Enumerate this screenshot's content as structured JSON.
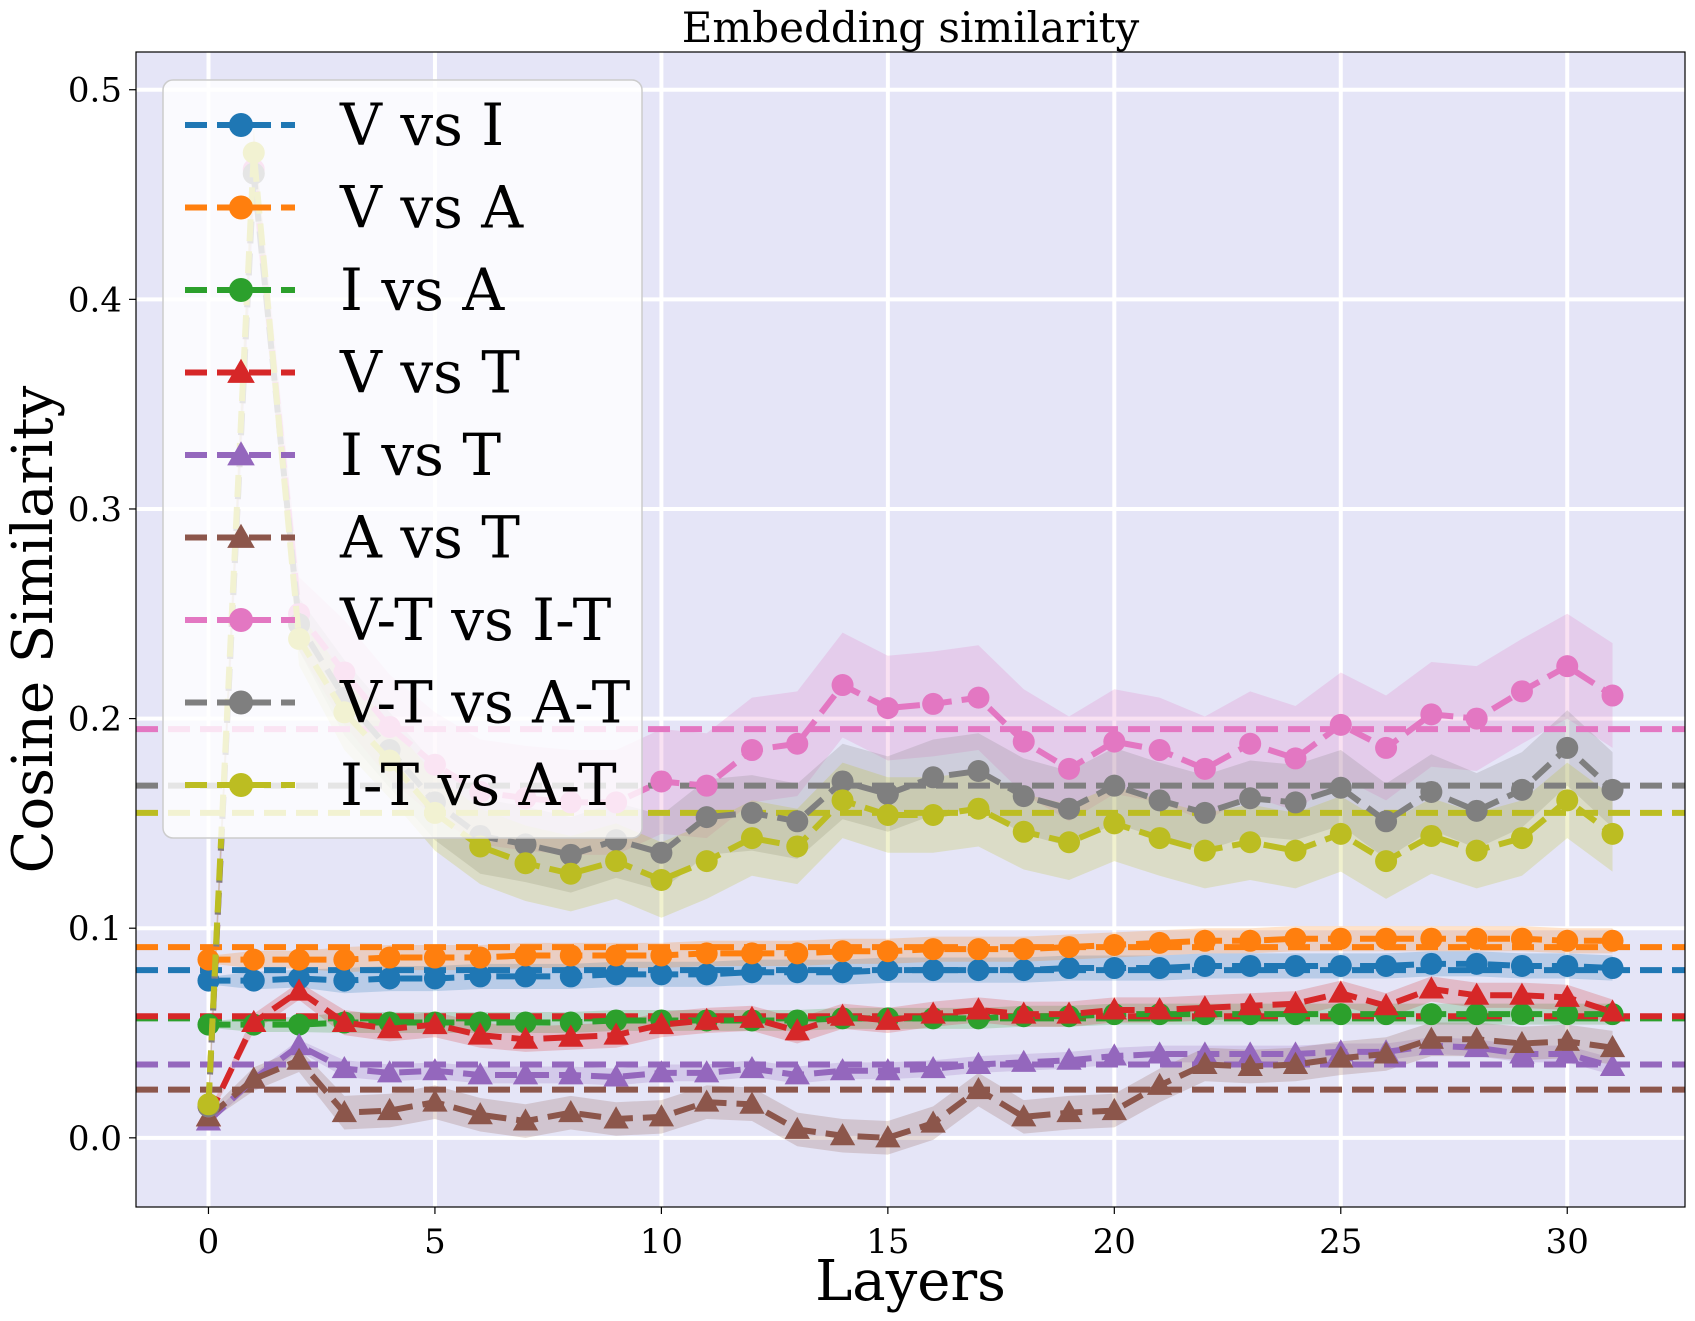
{
  "chart_data": {
    "type": "line",
    "title": "Embedding similarity",
    "xlabel": "Layers",
    "ylabel": "Cosine Similarity",
    "xlim": [
      -1.6,
      32.6
    ],
    "ylim": [
      -0.033,
      0.518
    ],
    "xticks": [
      0,
      5,
      10,
      15,
      20,
      25,
      30
    ],
    "yticks": [
      0.0,
      0.1,
      0.2,
      0.3,
      0.4,
      0.5
    ],
    "xtick_labels": [
      "0",
      "5",
      "10",
      "15",
      "20",
      "25",
      "30"
    ],
    "ytick_labels": [
      "0.0",
      "0.1",
      "0.2",
      "0.3",
      "0.4",
      "0.5"
    ],
    "grid": true,
    "legend_position": "top-left",
    "background_color": "#e5e5f7",
    "x": [
      0,
      1,
      2,
      3,
      4,
      5,
      6,
      7,
      8,
      9,
      10,
      11,
      12,
      13,
      14,
      15,
      16,
      17,
      18,
      19,
      20,
      21,
      22,
      23,
      24,
      25,
      26,
      27,
      28,
      29,
      30,
      31
    ],
    "series": [
      {
        "name": "V vs I",
        "color": "#1f77b4",
        "marker": "circle",
        "mean_line": 0.08,
        "band": 0.006,
        "values": [
          0.075,
          0.075,
          0.076,
          0.075,
          0.076,
          0.076,
          0.077,
          0.077,
          0.077,
          0.078,
          0.078,
          0.078,
          0.079,
          0.079,
          0.079,
          0.08,
          0.08,
          0.08,
          0.08,
          0.081,
          0.081,
          0.081,
          0.082,
          0.082,
          0.082,
          0.082,
          0.082,
          0.083,
          0.083,
          0.082,
          0.082,
          0.081
        ]
      },
      {
        "name": "V vs A",
        "color": "#ff7f0e",
        "marker": "circle",
        "mean_line": 0.091,
        "band": 0.006,
        "values": [
          0.085,
          0.085,
          0.085,
          0.085,
          0.086,
          0.086,
          0.086,
          0.087,
          0.087,
          0.087,
          0.087,
          0.088,
          0.088,
          0.088,
          0.089,
          0.089,
          0.09,
          0.09,
          0.09,
          0.091,
          0.092,
          0.093,
          0.094,
          0.094,
          0.095,
          0.095,
          0.095,
          0.095,
          0.095,
          0.095,
          0.094,
          0.094
        ]
      },
      {
        "name": "I vs A",
        "color": "#2ca02c",
        "marker": "circle",
        "mean_line": 0.057,
        "band": 0.005,
        "values": [
          0.054,
          0.054,
          0.054,
          0.055,
          0.055,
          0.055,
          0.055,
          0.055,
          0.055,
          0.056,
          0.056,
          0.056,
          0.056,
          0.056,
          0.057,
          0.057,
          0.057,
          0.057,
          0.058,
          0.058,
          0.059,
          0.059,
          0.059,
          0.059,
          0.059,
          0.059,
          0.059,
          0.059,
          0.059,
          0.059,
          0.059,
          0.059
        ]
      },
      {
        "name": "V vs T",
        "color": "#d62728",
        "marker": "triangle",
        "mean_line": 0.058,
        "band": 0.006,
        "values": [
          0.01,
          0.055,
          0.07,
          0.055,
          0.052,
          0.054,
          0.049,
          0.047,
          0.048,
          0.049,
          0.054,
          0.056,
          0.057,
          0.051,
          0.058,
          0.056,
          0.059,
          0.061,
          0.059,
          0.059,
          0.061,
          0.061,
          0.062,
          0.063,
          0.064,
          0.069,
          0.063,
          0.071,
          0.068,
          0.068,
          0.067,
          0.06
        ]
      },
      {
        "name": "I vs T",
        "color": "#9467bd",
        "marker": "triangle",
        "mean_line": 0.035,
        "band": 0.004,
        "values": [
          0.008,
          0.028,
          0.044,
          0.033,
          0.031,
          0.032,
          0.03,
          0.03,
          0.03,
          0.029,
          0.031,
          0.031,
          0.033,
          0.03,
          0.032,
          0.032,
          0.033,
          0.035,
          0.036,
          0.037,
          0.039,
          0.04,
          0.04,
          0.04,
          0.04,
          0.041,
          0.041,
          0.044,
          0.043,
          0.04,
          0.04,
          0.034
        ]
      },
      {
        "name": "A vs T",
        "color": "#8c564b",
        "marker": "triangle",
        "mean_line": 0.023,
        "band": 0.008,
        "values": [
          0.01,
          0.028,
          0.037,
          0.012,
          0.013,
          0.017,
          0.011,
          0.008,
          0.012,
          0.009,
          0.01,
          0.017,
          0.016,
          0.004,
          0.001,
          0.0,
          0.007,
          0.023,
          0.01,
          0.012,
          0.013,
          0.025,
          0.035,
          0.034,
          0.035,
          0.038,
          0.04,
          0.047,
          0.047,
          0.045,
          0.046,
          0.043
        ]
      },
      {
        "name": "V-T vs I-T",
        "color": "#e377c2",
        "marker": "circle",
        "mean_line": 0.195,
        "band": 0.025,
        "values": [
          0.015,
          0.462,
          0.25,
          0.222,
          0.196,
          0.178,
          0.165,
          0.162,
          0.16,
          0.16,
          0.17,
          0.168,
          0.185,
          0.188,
          0.216,
          0.205,
          0.207,
          0.21,
          0.189,
          0.176,
          0.189,
          0.185,
          0.176,
          0.188,
          0.181,
          0.197,
          0.186,
          0.202,
          0.2,
          0.213,
          0.225,
          0.211
        ]
      },
      {
        "name": "V-T vs A-T",
        "color": "#7f7f7f",
        "marker": "circle",
        "mean_line": 0.168,
        "band": 0.018,
        "values": [
          0.015,
          0.46,
          0.245,
          0.21,
          0.185,
          0.16,
          0.144,
          0.14,
          0.135,
          0.142,
          0.136,
          0.153,
          0.155,
          0.151,
          0.17,
          0.164,
          0.172,
          0.175,
          0.163,
          0.157,
          0.168,
          0.161,
          0.155,
          0.162,
          0.16,
          0.167,
          0.151,
          0.165,
          0.156,
          0.166,
          0.186,
          0.166
        ]
      },
      {
        "name": "I-T vs A-T",
        "color": "#bcbd22",
        "marker": "circle",
        "mean_line": 0.155,
        "band": 0.018,
        "values": [
          0.016,
          0.47,
          0.238,
          0.203,
          0.18,
          0.155,
          0.139,
          0.131,
          0.126,
          0.132,
          0.123,
          0.132,
          0.143,
          0.139,
          0.161,
          0.154,
          0.154,
          0.157,
          0.146,
          0.141,
          0.15,
          0.143,
          0.137,
          0.141,
          0.137,
          0.145,
          0.132,
          0.144,
          0.137,
          0.143,
          0.161,
          0.145
        ]
      }
    ]
  }
}
